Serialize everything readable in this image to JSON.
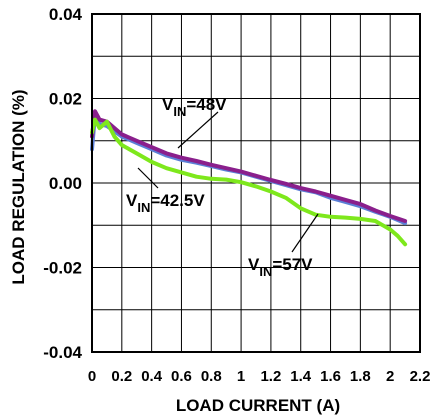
{
  "chart_data": {
    "type": "line",
    "title": "",
    "xlabel": "LOAD CURRENT (A)",
    "ylabel": "LOAD REGULATION (%)",
    "xlim": [
      0,
      2.2
    ],
    "ylim": [
      -0.04,
      0.04
    ],
    "x_ticks": [
      "0",
      "0.2",
      "0.4",
      "0.6",
      "0.8",
      "1",
      "1.2",
      "1.4",
      "1.6",
      "1.8",
      "2",
      "2.2"
    ],
    "y_ticks": [
      "0.04",
      "0.02",
      "0.00",
      "-0.02",
      "-0.04"
    ],
    "grid": true,
    "series": [
      {
        "color": "#5b7fd6",
        "x": [
          0,
          0.02,
          0.05,
          0.1,
          0.2,
          0.3,
          0.4,
          0.5,
          0.6,
          0.7,
          0.8,
          0.9,
          1.0,
          1.1,
          1.2,
          1.3,
          1.4,
          1.5,
          1.6,
          1.7,
          1.8,
          1.9,
          2.0,
          2.1
        ],
        "y": [
          0.008,
          0.016,
          0.014,
          0.0135,
          0.011,
          0.0095,
          0.008,
          0.0065,
          0.0055,
          0.0048,
          0.004,
          0.0032,
          0.0025,
          0.0015,
          0.0005,
          -0.0005,
          -0.0015,
          -0.0022,
          -0.0035,
          -0.0045,
          -0.0055,
          -0.0068,
          -0.008,
          -0.0095
        ]
      },
      {
        "color": "#8a1f8c",
        "x": [
          0,
          0.02,
          0.05,
          0.1,
          0.2,
          0.3,
          0.4,
          0.5,
          0.6,
          0.7,
          0.8,
          0.9,
          1.0,
          1.1,
          1.2,
          1.3,
          1.4,
          1.5,
          1.6,
          1.7,
          1.8,
          1.9,
          2.0,
          2.1
        ],
        "y": [
          0.011,
          0.017,
          0.015,
          0.0145,
          0.0115,
          0.01,
          0.0085,
          0.007,
          0.006,
          0.0052,
          0.0043,
          0.0035,
          0.0027,
          0.0017,
          0.0007,
          -0.0002,
          -0.0012,
          -0.002,
          -0.003,
          -0.004,
          -0.005,
          -0.0065,
          -0.0078,
          -0.009
        ]
      },
      {
        "color": "#7ee81c",
        "x": [
          0,
          0.02,
          0.05,
          0.1,
          0.15,
          0.2,
          0.3,
          0.4,
          0.5,
          0.6,
          0.7,
          0.8,
          0.9,
          1.0,
          1.1,
          1.2,
          1.3,
          1.4,
          1.5,
          1.6,
          1.7,
          1.8,
          1.9,
          2.0,
          2.05,
          2.1
        ],
        "y": [
          0.012,
          0.015,
          0.013,
          0.0145,
          0.011,
          0.009,
          0.007,
          0.005,
          0.0035,
          0.0025,
          0.0015,
          0.001,
          0.0008,
          0.0002,
          -0.0008,
          -0.002,
          -0.0035,
          -0.006,
          -0.0075,
          -0.008,
          -0.0082,
          -0.0085,
          -0.009,
          -0.011,
          -0.0125,
          -0.0145
        ]
      }
    ],
    "annotations": [
      {
        "prefix": "V",
        "sub": "IN",
        "suffix": "=48V"
      },
      {
        "prefix": "V",
        "sub": "IN",
        "suffix": "=42.5V"
      },
      {
        "prefix": "V",
        "sub": "IN",
        "suffix": "=57V"
      }
    ]
  }
}
